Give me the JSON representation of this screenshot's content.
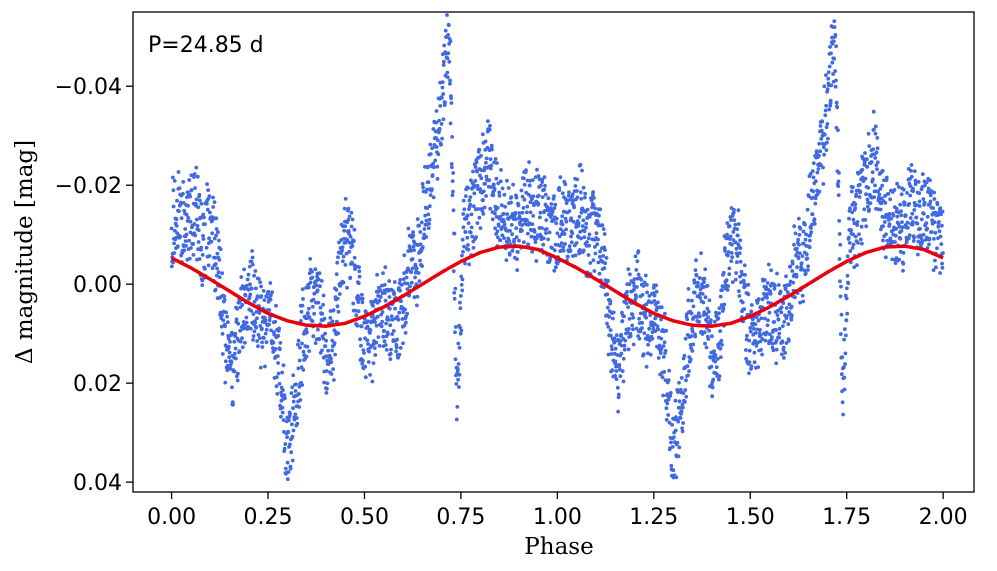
{
  "chart_data": {
    "type": "scatter",
    "annotation": "P=24.85 d",
    "xlabel": "Phase",
    "ylabel": "Δ magnitude [mag]",
    "xlim": [
      -0.1,
      2.08
    ],
    "ylim": [
      0.042,
      -0.055
    ],
    "y_inverted": true,
    "x_ticks": [
      0.0,
      0.25,
      0.5,
      0.75,
      1.0,
      1.25,
      1.5,
      1.75,
      2.0
    ],
    "x_tick_labels": [
      "0.00",
      "0.25",
      "0.50",
      "0.75",
      "1.00",
      "1.25",
      "1.50",
      "1.75",
      "2.00"
    ],
    "y_ticks": [
      -0.04,
      -0.02,
      0.0,
      0.02,
      0.04
    ],
    "y_tick_labels": [
      "−0.04",
      "−0.02",
      "0.00",
      "0.02",
      "0.04"
    ],
    "grid": false,
    "colors": {
      "points": "#4169e1",
      "model": "#e8000b"
    },
    "series": [
      {
        "kind": "points",
        "x": [
          0.0,
          0.02,
          0.04,
          0.06,
          0.08,
          0.1,
          0.12,
          0.14,
          0.16,
          0.18,
          0.2,
          0.22,
          0.24,
          0.26,
          0.28,
          0.3,
          0.32,
          0.34,
          0.36,
          0.38,
          0.4,
          0.42,
          0.44,
          0.46,
          0.48,
          0.5,
          0.52,
          0.54,
          0.56,
          0.58,
          0.6,
          0.62,
          0.64,
          0.66,
          0.68,
          0.7,
          0.72,
          0.74,
          0.76,
          0.78,
          0.8,
          0.82,
          0.84,
          0.86,
          0.88,
          0.9,
          0.92,
          0.94,
          0.96,
          0.98,
          1.0
        ],
        "y": [
          -0.012,
          -0.014,
          -0.01,
          -0.016,
          -0.008,
          -0.012,
          -0.004,
          0.012,
          0.018,
          0.006,
          0.002,
          0.004,
          0.01,
          0.006,
          0.016,
          0.034,
          0.026,
          0.01,
          0.004,
          0.002,
          0.016,
          0.012,
          -0.006,
          -0.01,
          0.0,
          0.012,
          0.01,
          0.004,
          0.006,
          0.008,
          0.004,
          -0.006,
          -0.004,
          -0.018,
          -0.024,
          -0.036,
          -0.05,
          0.022,
          -0.012,
          -0.014,
          -0.02,
          -0.026,
          -0.016,
          -0.014,
          -0.012,
          -0.01,
          -0.018,
          -0.012,
          -0.016,
          -0.01,
          -0.008
        ]
      },
      {
        "kind": "model",
        "x": [
          0.0,
          0.05,
          0.1,
          0.15,
          0.2,
          0.25,
          0.3,
          0.35,
          0.4,
          0.45,
          0.5,
          0.55,
          0.6,
          0.65,
          0.7,
          0.75,
          0.8,
          0.85,
          0.9,
          0.95,
          1.0
        ],
        "y": [
          -0.0053,
          -0.0033,
          -0.001,
          0.0014,
          0.0038,
          0.0059,
          0.0074,
          0.0083,
          0.0085,
          0.0079,
          0.0065,
          0.0046,
          0.0024,
          0.0,
          -0.0024,
          -0.0046,
          -0.0064,
          -0.0075,
          -0.0077,
          -0.007,
          -0.0053
        ]
      }
    ]
  }
}
